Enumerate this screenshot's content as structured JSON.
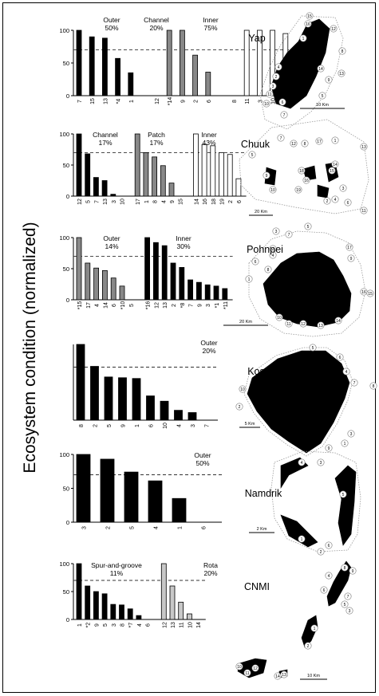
{
  "figure": {
    "ylabel": "Ecosystem condition (normalized)"
  },
  "chart_data": [
    {
      "type": "bar",
      "name": "Yap",
      "ylim": [
        0,
        100
      ],
      "yticks": [
        0,
        50,
        100
      ],
      "threshold": 70,
      "threshold_style": "dashed",
      "groups": [
        {
          "label": "Outer\n50%",
          "color": "#000000",
          "categories": [
            "7",
            "15",
            "13",
            "*4",
            "1"
          ],
          "values": [
            100,
            90,
            88,
            57,
            35
          ]
        },
        {
          "label": "Channel\n20%",
          "color": "#888888",
          "categories": [
            "12",
            "*14",
            "9",
            "2",
            "6"
          ],
          "values": [
            0,
            100,
            100,
            62,
            36
          ]
        },
        {
          "label": "Inner\n75%",
          "color": "#ffffff",
          "categories": [
            "8",
            "11",
            "3",
            "10",
            "5"
          ],
          "values": [
            0,
            100,
            100,
            100,
            95
          ]
        }
      ]
    },
    {
      "type": "bar",
      "name": "Chuuk",
      "ylim": [
        0,
        100
      ],
      "yticks": [
        0,
        50,
        100
      ],
      "threshold": 70,
      "threshold_style": "dashed",
      "groups": [
        {
          "label": "Channel\n17%",
          "color": "#000000",
          "categories": [
            "12",
            "5",
            "7",
            "13",
            "3",
            "10"
          ],
          "values": [
            100,
            68,
            30,
            25,
            3,
            0
          ]
        },
        {
          "label": "Patch\n17%",
          "color": "#888888",
          "categories": [
            "17",
            "1",
            "8",
            "4",
            "9",
            "15"
          ],
          "values": [
            100,
            70,
            63,
            49,
            21,
            0
          ]
        },
        {
          "label": "Inner\n43%",
          "color": "#ffffff",
          "categories": [
            "14",
            "16",
            "18",
            "19",
            "2",
            "6"
          ],
          "values": [
            100,
            83,
            81,
            70,
            67,
            28
          ]
        }
      ]
    },
    {
      "type": "bar",
      "name": "Pohnpei",
      "ylim": [
        0,
        100
      ],
      "yticks": [
        0,
        50,
        100
      ],
      "threshold": 70,
      "threshold_style": "dashed",
      "groups": [
        {
          "label": "Outer\n14%",
          "color": "#888888",
          "categories": [
            "*15",
            "17",
            "4",
            "14",
            "6",
            "*10",
            "5"
          ],
          "values": [
            100,
            59,
            51,
            47,
            35,
            22,
            0
          ]
        },
        {
          "label": "Inner\n30%",
          "color": "#000000",
          "categories": [
            "*16",
            "12",
            "13",
            "2",
            "*8",
            "7",
            "9",
            "3",
            "*1",
            "*11"
          ],
          "values": [
            100,
            92,
            87,
            59,
            52,
            32,
            28,
            24,
            22,
            18
          ]
        }
      ]
    },
    {
      "type": "bar",
      "name": "Kosrae",
      "ylim": [
        0,
        100
      ],
      "threshold": 70,
      "threshold_style": "dashed",
      "groups": [
        {
          "label": "Outer\n20%",
          "color": "#000000",
          "categories": [
            "8",
            "2",
            "5",
            "9",
            "1",
            "6",
            "10",
            "4",
            "3",
            "7"
          ],
          "values": [
            100,
            71,
            57,
            56,
            55,
            32,
            25,
            13,
            10,
            0
          ]
        }
      ]
    },
    {
      "type": "bar",
      "name": "Namdrik",
      "ylim": [
        0,
        100
      ],
      "yticks": [
        0,
        50,
        100
      ],
      "threshold": 70,
      "threshold_style": "dashed",
      "groups": [
        {
          "label": "Outer\n50%",
          "color": "#000000",
          "categories": [
            "3",
            "2",
            "5",
            "4",
            "1",
            "6"
          ],
          "values": [
            100,
            93,
            74,
            61,
            35,
            0
          ]
        }
      ]
    },
    {
      "type": "bar",
      "name": "CNMI",
      "ylim": [
        0,
        100
      ],
      "yticks": [
        0,
        50,
        100
      ],
      "threshold": 70,
      "threshold_style": "dashed",
      "groups": [
        {
          "label": "Spur-and-groove\n11%",
          "color": "#000000",
          "categories": [
            "1",
            "*2",
            "9",
            "5",
            "3",
            "8",
            "*7",
            "4",
            "6"
          ],
          "values": [
            100,
            60,
            50,
            46,
            27,
            26,
            19,
            7,
            0
          ]
        },
        {
          "label": "Rota\n20%",
          "color": "#c8c8c8",
          "categories": [
            "12",
            "13",
            "11",
            "10",
            "14"
          ],
          "values": [
            100,
            60,
            31,
            10,
            0
          ]
        }
      ]
    }
  ],
  "maps": [
    {
      "title": "Yap",
      "scale": "10 Km",
      "site_labels": [
        "15",
        "16",
        "12",
        "8",
        "1",
        "4",
        "14",
        "13",
        "9",
        "2",
        "3",
        "11",
        "10",
        "6",
        "5",
        "7"
      ]
    },
    {
      "title": "Chuuk",
      "scale": "20 Km",
      "site_labels": [
        "7",
        "12",
        "8",
        "17",
        "1",
        "5",
        "13",
        "14",
        "15",
        "18",
        "16",
        "9",
        "3",
        "10",
        "19",
        "4",
        "6",
        "2",
        "11"
      ]
    },
    {
      "title": "Pohnpei",
      "scale": "20 Km",
      "site_labels": [
        "5",
        "3",
        "7",
        "2",
        "4",
        "6",
        "8",
        "17",
        "9",
        "1",
        "16",
        "15",
        "10",
        "11",
        "12",
        "13",
        "14"
      ]
    },
    {
      "title": "Kosrae",
      "scale": "5 Km",
      "site_labels": [
        "5",
        "6",
        "4",
        "8",
        "7",
        "10",
        "2",
        "3",
        "1",
        "9"
      ]
    },
    {
      "title": "Namdrik",
      "scale": "2 Km",
      "site_labels": [
        "4",
        "3",
        "5",
        "1",
        "6",
        "2"
      ]
    },
    {
      "title": "CNMI",
      "scale": "10 Km",
      "site_labels": [
        "8",
        "9",
        "4",
        "6",
        "7",
        "5",
        "3",
        "1",
        "2",
        "10",
        "11",
        "12",
        "13",
        "14"
      ]
    }
  ]
}
